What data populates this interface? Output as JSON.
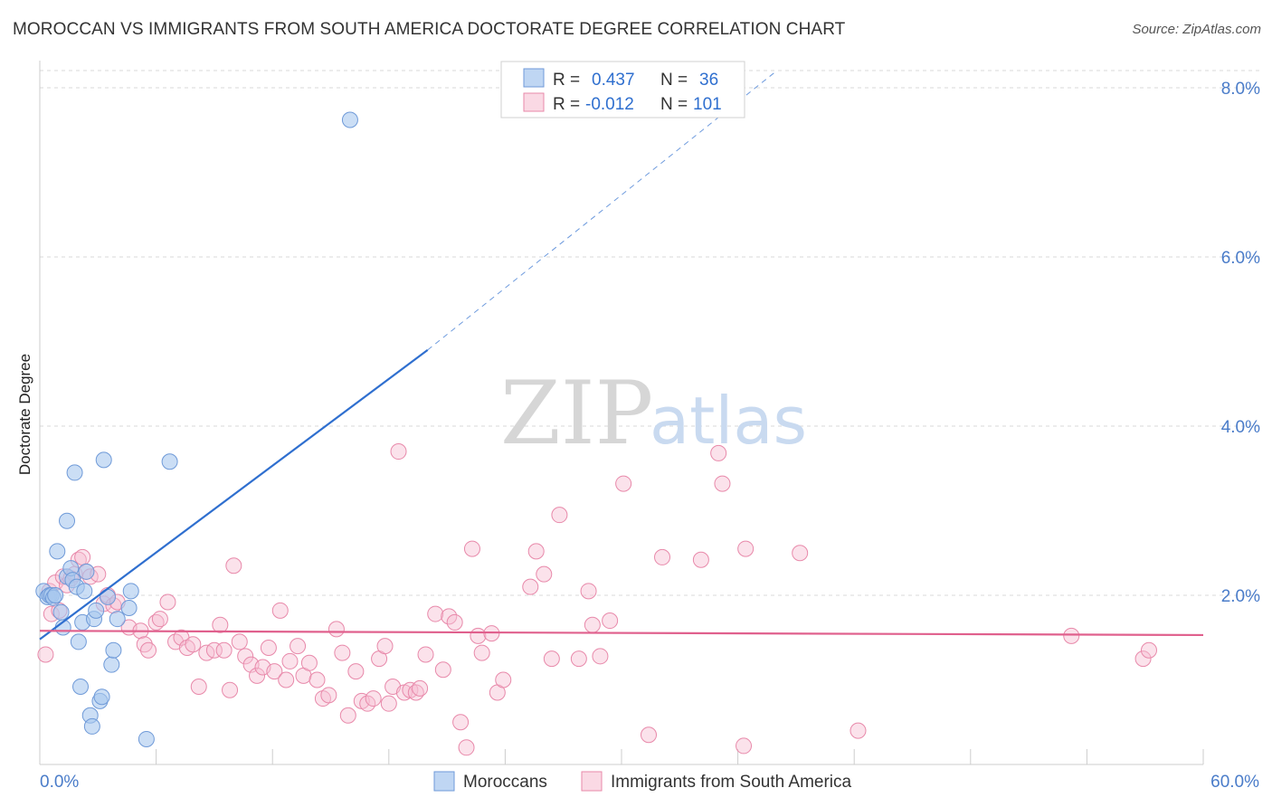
{
  "title": "MOROCCAN VS IMMIGRANTS FROM SOUTH AMERICA DOCTORATE DEGREE CORRELATION CHART",
  "source": "Source: ZipAtlas.com",
  "watermark": {
    "zip": "ZIP",
    "atlas": "atlas"
  },
  "colors": {
    "blue_fill": "#a9c8ef",
    "blue_stroke": "#6f9ad8",
    "blue_line": "#2f6fcf",
    "pink_fill": "#f6bfd2",
    "pink_stroke": "#e889aa",
    "pink_line": "#e0608d",
    "tick_text": "#4a7cc9",
    "grid": "#d9d9d9"
  },
  "legend": {
    "r_label": "R =",
    "n_label": "N =",
    "rows": [
      {
        "series": "Moroccans",
        "r": "0.437",
        "n": "36"
      },
      {
        "series": "Immigrants from South America",
        "r": "-0.012",
        "n": "101"
      }
    ]
  },
  "chart_data": {
    "type": "scatter",
    "xlabel": "",
    "ylabel": "Doctorate Degree",
    "xlim": [
      0,
      60
    ],
    "ylim": [
      0,
      8.0
    ],
    "x_tick_labels": [
      "0.0%",
      "60.0%"
    ],
    "y_ticks": [
      2.0,
      4.0,
      6.0,
      8.0
    ],
    "y_tick_labels": [
      "2.0%",
      "4.0%",
      "6.0%",
      "8.0%"
    ],
    "grid": true,
    "legend_position": "bottom-center",
    "series": [
      {
        "name": "Moroccans",
        "color": "#a9c8ef",
        "trend": {
          "x0": 0,
          "y0": 1.48,
          "x1": 20,
          "y1": 4.9,
          "dash_to_x": 38,
          "dash_to_y": 8.2
        },
        "points": [
          [
            0.2,
            2.05
          ],
          [
            0.4,
            1.98
          ],
          [
            0.5,
            2.0
          ],
          [
            0.6,
            2.0
          ],
          [
            0.7,
            1.97
          ],
          [
            0.8,
            2.0
          ],
          [
            0.9,
            2.52
          ],
          [
            1.1,
            1.8
          ],
          [
            1.2,
            1.62
          ],
          [
            1.4,
            2.22
          ],
          [
            1.4,
            2.88
          ],
          [
            1.6,
            2.32
          ],
          [
            1.7,
            2.18
          ],
          [
            1.8,
            3.45
          ],
          [
            1.9,
            2.1
          ],
          [
            2.0,
            1.45
          ],
          [
            2.1,
            0.92
          ],
          [
            2.2,
            1.68
          ],
          [
            2.3,
            2.05
          ],
          [
            2.4,
            2.28
          ],
          [
            2.6,
            0.58
          ],
          [
            2.7,
            0.45
          ],
          [
            2.8,
            1.72
          ],
          [
            2.9,
            1.82
          ],
          [
            3.1,
            0.75
          ],
          [
            3.2,
            0.8
          ],
          [
            3.3,
            3.6
          ],
          [
            3.5,
            1.98
          ],
          [
            3.7,
            1.18
          ],
          [
            3.8,
            1.35
          ],
          [
            4.0,
            1.72
          ],
          [
            4.6,
            1.85
          ],
          [
            4.7,
            2.05
          ],
          [
            5.5,
            0.3
          ],
          [
            6.7,
            3.58
          ],
          [
            16.0,
            7.62
          ]
        ]
      },
      {
        "name": "Immigrants from South America",
        "color": "#f6bfd2",
        "trend": {
          "x0": 0,
          "y0": 1.58,
          "x1": 60,
          "y1": 1.53
        },
        "points": [
          [
            0.3,
            1.3
          ],
          [
            0.5,
            2.05
          ],
          [
            0.6,
            1.78
          ],
          [
            0.8,
            2.15
          ],
          [
            1.0,
            1.82
          ],
          [
            1.2,
            2.22
          ],
          [
            1.4,
            2.12
          ],
          [
            1.6,
            2.2
          ],
          [
            1.8,
            2.25
          ],
          [
            2.0,
            2.42
          ],
          [
            2.2,
            2.45
          ],
          [
            2.4,
            2.28
          ],
          [
            2.6,
            2.22
          ],
          [
            3.0,
            2.25
          ],
          [
            3.3,
            1.9
          ],
          [
            3.5,
            2.0
          ],
          [
            3.8,
            1.88
          ],
          [
            4.0,
            1.92
          ],
          [
            4.6,
            1.62
          ],
          [
            5.2,
            1.58
          ],
          [
            5.4,
            1.42
          ],
          [
            5.6,
            1.35
          ],
          [
            6.0,
            1.68
          ],
          [
            6.2,
            1.72
          ],
          [
            6.6,
            1.92
          ],
          [
            7.0,
            1.45
          ],
          [
            7.3,
            1.5
          ],
          [
            7.6,
            1.38
          ],
          [
            7.9,
            1.42
          ],
          [
            8.2,
            0.92
          ],
          [
            8.6,
            1.32
          ],
          [
            9.0,
            1.35
          ],
          [
            9.3,
            1.65
          ],
          [
            9.5,
            1.35
          ],
          [
            9.8,
            0.88
          ],
          [
            10.0,
            2.35
          ],
          [
            10.3,
            1.45
          ],
          [
            10.6,
            1.28
          ],
          [
            10.9,
            1.18
          ],
          [
            11.2,
            1.05
          ],
          [
            11.5,
            1.15
          ],
          [
            11.8,
            1.38
          ],
          [
            12.1,
            1.1
          ],
          [
            12.4,
            1.82
          ],
          [
            12.7,
            1.0
          ],
          [
            12.9,
            1.22
          ],
          [
            13.3,
            1.4
          ],
          [
            13.6,
            1.05
          ],
          [
            13.9,
            1.2
          ],
          [
            14.3,
            1.0
          ],
          [
            14.6,
            0.78
          ],
          [
            14.9,
            0.82
          ],
          [
            15.3,
            1.6
          ],
          [
            15.6,
            1.32
          ],
          [
            15.9,
            0.58
          ],
          [
            16.3,
            1.1
          ],
          [
            16.6,
            0.75
          ],
          [
            16.9,
            0.72
          ],
          [
            17.2,
            0.78
          ],
          [
            17.5,
            1.25
          ],
          [
            17.8,
            1.4
          ],
          [
            18.0,
            0.72
          ],
          [
            18.2,
            0.92
          ],
          [
            18.5,
            3.7
          ],
          [
            18.8,
            0.85
          ],
          [
            19.1,
            0.88
          ],
          [
            19.4,
            0.85
          ],
          [
            19.6,
            0.9
          ],
          [
            19.9,
            1.3
          ],
          [
            20.4,
            1.78
          ],
          [
            20.8,
            1.12
          ],
          [
            21.1,
            1.75
          ],
          [
            21.4,
            1.68
          ],
          [
            21.7,
            0.5
          ],
          [
            22.0,
            0.2
          ],
          [
            22.3,
            2.55
          ],
          [
            22.6,
            1.52
          ],
          [
            22.8,
            1.32
          ],
          [
            23.3,
            1.55
          ],
          [
            23.6,
            0.85
          ],
          [
            23.9,
            1.0
          ],
          [
            25.3,
            2.1
          ],
          [
            25.6,
            2.52
          ],
          [
            26.0,
            2.25
          ],
          [
            26.4,
            1.25
          ],
          [
            26.8,
            2.95
          ],
          [
            27.8,
            1.25
          ],
          [
            28.3,
            2.05
          ],
          [
            28.5,
            1.65
          ],
          [
            28.9,
            1.28
          ],
          [
            29.4,
            1.7
          ],
          [
            30.1,
            3.32
          ],
          [
            31.4,
            0.35
          ],
          [
            32.1,
            2.45
          ],
          [
            34.1,
            2.42
          ],
          [
            35.0,
            3.68
          ],
          [
            35.2,
            3.32
          ],
          [
            36.3,
            0.22
          ],
          [
            36.4,
            2.55
          ],
          [
            39.2,
            2.5
          ],
          [
            42.2,
            0.4
          ],
          [
            53.2,
            1.52
          ],
          [
            56.9,
            1.25
          ],
          [
            57.2,
            1.35
          ]
        ]
      }
    ]
  }
}
